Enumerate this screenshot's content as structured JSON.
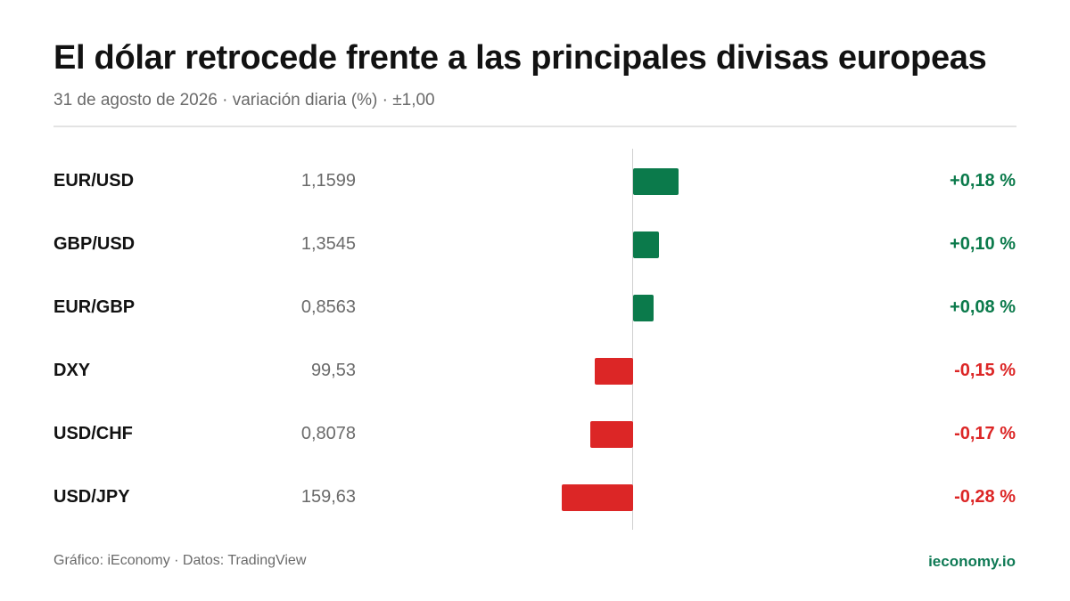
{
  "title": "El dólar retrocede frente a las principales divisas europeas",
  "subtitle": "31 de agosto de 2026 · variación diaria (%) · ±1,00",
  "footer": {
    "source": "Gráfico: iEconomy · Datos: TradingView",
    "site": "ieconomy.io"
  },
  "colors": {
    "positive": "#0b7a4b",
    "negative": "#dc2626"
  },
  "chart_data": {
    "type": "bar",
    "orientation": "horizontal",
    "unit": "%",
    "scale_label": "±1,00",
    "categories": [
      "EUR/USD",
      "GBP/USD",
      "EUR/GBP",
      "DXY",
      "USD/CHF",
      "USD/JPY"
    ],
    "prices": [
      "1,1599",
      "1,3545",
      "0,8563",
      "99,53",
      "0,8078",
      "159,63"
    ],
    "values": [
      0.18,
      0.1,
      0.08,
      -0.15,
      -0.17,
      -0.28
    ],
    "labels": [
      "+0,18 %",
      "+0,10 %",
      "+0,08 %",
      "-0,15 %",
      "-0,17 %",
      "-0,28 %"
    ]
  }
}
